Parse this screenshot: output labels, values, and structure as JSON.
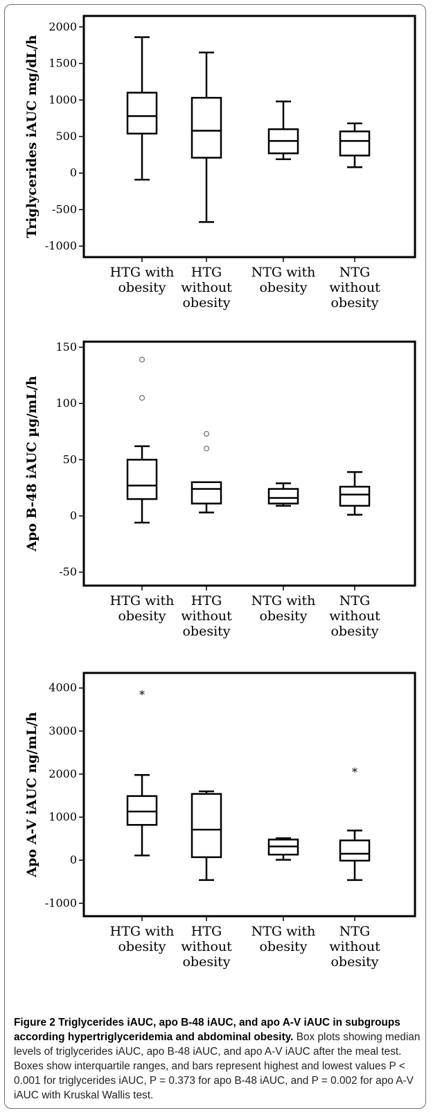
{
  "chart_data": [
    {
      "type": "box",
      "ylabel": "Triglycerides iAUC mg/dL/h",
      "ylim": [
        -1150,
        2150
      ],
      "yticks": [
        -1000,
        -500,
        0,
        500,
        1000,
        1500,
        2000
      ],
      "categories": [
        "HTG with\nobesity",
        "HTG\nwithout\nobesity",
        "NTG with\nobesity",
        "NTG\nwithout\nobesity"
      ],
      "boxes": [
        {
          "min": -90,
          "q1": 540,
          "median": 780,
          "q3": 1100,
          "max": 1860,
          "outliers": [],
          "extremes": []
        },
        {
          "min": -670,
          "q1": 210,
          "median": 580,
          "q3": 1030,
          "max": 1650,
          "outliers": [],
          "extremes": []
        },
        {
          "min": 190,
          "q1": 270,
          "median": 440,
          "q3": 600,
          "max": 980,
          "outliers": [],
          "extremes": []
        },
        {
          "min": 80,
          "q1": 240,
          "median": 440,
          "q3": 570,
          "max": 680,
          "outliers": [],
          "extremes": []
        }
      ]
    },
    {
      "type": "box",
      "ylabel": "Apo B-48 iAUC µg/mL/h",
      "ylim": [
        -62,
        155
      ],
      "yticks": [
        -50,
        0,
        50,
        100,
        150
      ],
      "categories": [
        "HTG with\nobesity",
        "HTG\nwithout\nobesity",
        "NTG with\nobesity",
        "NTG\nwithout\nobesity"
      ],
      "boxes": [
        {
          "min": -6,
          "q1": 15,
          "median": 27,
          "q3": 50,
          "max": 62,
          "outliers": [
            105,
            139
          ],
          "extremes": []
        },
        {
          "min": 3,
          "q1": 11,
          "median": 24,
          "q3": 30,
          "max": 30,
          "outliers": [
            60,
            73
          ],
          "extremes": []
        },
        {
          "min": 9,
          "q1": 11,
          "median": 16,
          "q3": 24,
          "max": 29,
          "outliers": [],
          "extremes": []
        },
        {
          "min": 1,
          "q1": 9,
          "median": 19,
          "q3": 26,
          "max": 39,
          "outliers": [],
          "extremes": []
        }
      ]
    },
    {
      "type": "box",
      "ylabel": "Apo A-V iAUC ng/mL/h",
      "ylim": [
        -1300,
        4350
      ],
      "yticks": [
        -1000,
        0,
        1000,
        2000,
        3000,
        4000
      ],
      "categories": [
        "HTG with\nobesity",
        "HTG\nwithout\nobesity",
        "NTG with\nobesity",
        "NTG\nwithout\nobesity"
      ],
      "boxes": [
        {
          "min": 110,
          "q1": 820,
          "median": 1130,
          "q3": 1490,
          "max": 1980,
          "outliers": [],
          "extremes": [
            3850
          ]
        },
        {
          "min": -460,
          "q1": 70,
          "median": 710,
          "q3": 1540,
          "max": 1600,
          "outliers": [],
          "extremes": []
        },
        {
          "min": 10,
          "q1": 130,
          "median": 320,
          "q3": 480,
          "max": 510,
          "outliers": [],
          "extremes": []
        },
        {
          "min": -460,
          "q1": -10,
          "median": 150,
          "q3": 460,
          "max": 690,
          "outliers": [],
          "extremes": [
            2060
          ]
        }
      ]
    }
  ],
  "caption": {
    "title": "Figure 2 Triglycerides iAUC, apo B-48 iAUC, and apo A-V iAUC in subgroups according hypertriglyceridemia and abdominal obesity.",
    "body": "Box plots showing median levels of triglycerides iAUC, apo B-48 iAUC, and apo A-V iAUC after the meal test. Boxes show interquartile ranges, and bars represent highest and lowest values P < 0.001 for triglycerides iAUC, P = 0.373 for apo B-48 iAUC, and P = 0.002 for apo A-V iAUC with Kruskal Wallis test."
  }
}
